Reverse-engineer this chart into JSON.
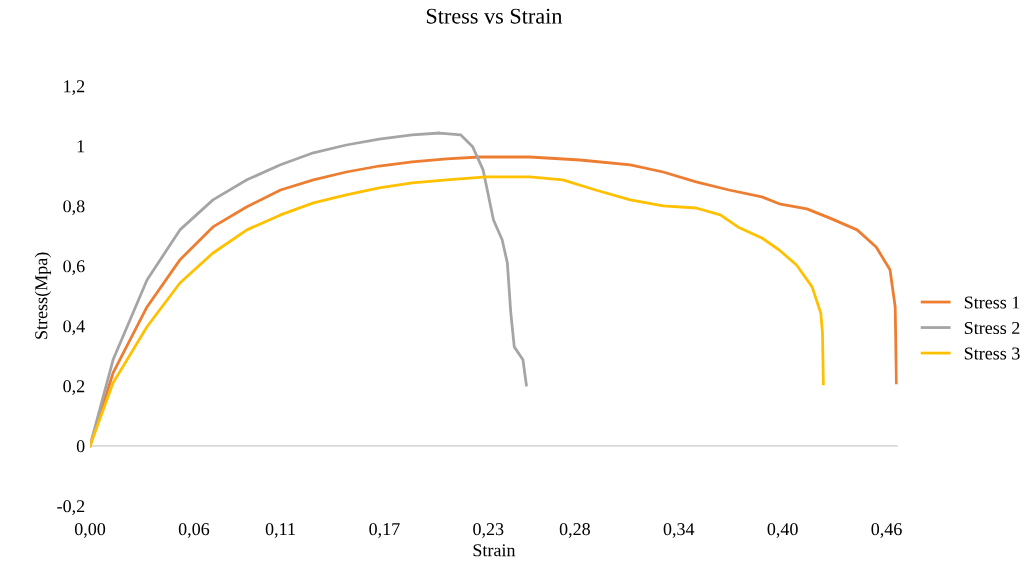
{
  "chart_data": {
    "type": "line",
    "title": "Stress vs Strain",
    "xlabel": "Strain",
    "ylabel": "Stress(Mpa)",
    "xlim": [
      0,
      0.4665
    ],
    "xticks": [
      {
        "value": 0,
        "label": "0,00"
      },
      {
        "value": 0.06,
        "label": "0,06"
      },
      {
        "value": 0.11,
        "label": "0,11"
      },
      {
        "value": 0.17,
        "label": "0,17"
      },
      {
        "value": 0.23,
        "label": "0,23"
      },
      {
        "value": 0.28,
        "label": "0,28"
      },
      {
        "value": 0.34,
        "label": "0,34"
      },
      {
        "value": 0.4,
        "label": "0,40"
      },
      {
        "value": 0.46,
        "label": "0,46"
      }
    ],
    "ylim": [
      -0.2,
      1.2
    ],
    "yticks": [
      {
        "value": -0.2,
        "label": "-0,2"
      },
      0,
      {
        "value": 0.2,
        "label": "0,2"
      },
      {
        "value": 0.4,
        "label": "0,4"
      },
      {
        "value": 0.6,
        "label": "0,6"
      },
      {
        "value": 0.8,
        "label": "0,8"
      },
      1,
      {
        "value": 1.2,
        "label": "1,2"
      }
    ],
    "grid": false,
    "ref_lines": [
      {
        "axis": "y",
        "value": 0,
        "color": "#d9d9d9"
      }
    ],
    "legend": "right",
    "marker": "none",
    "line_style": "solid",
    "series": [
      {
        "name": "Stress 1",
        "color": "#ed7d31",
        "x": [
          0,
          0.0133,
          0.0329,
          0.0519,
          0.071,
          0.0906,
          0.11,
          0.129,
          0.148,
          0.167,
          0.186,
          0.206,
          0.225,
          0.254,
          0.283,
          0.312,
          0.331,
          0.35,
          0.369,
          0.388,
          0.398,
          0.414,
          0.427,
          0.443,
          0.454,
          0.462,
          0.465,
          0.4657
        ],
        "values": [
          0,
          0.243,
          0.463,
          0.62,
          0.73,
          0.797,
          0.853,
          0.887,
          0.913,
          0.933,
          0.947,
          0.957,
          0.963,
          0.963,
          0.953,
          0.937,
          0.913,
          0.88,
          0.853,
          0.83,
          0.807,
          0.79,
          0.76,
          0.72,
          0.663,
          0.587,
          0.463,
          0.21
        ]
      },
      {
        "name": "Stress 2",
        "color": "#a5a5a5",
        "x": [
          0,
          0.0133,
          0.0329,
          0.0519,
          0.071,
          0.0906,
          0.11,
          0.129,
          0.148,
          0.167,
          0.186,
          0.202,
          0.214,
          0.221,
          0.227,
          0.233,
          0.238,
          0.241,
          0.243,
          0.245,
          0.25,
          0.252
        ],
        "values": [
          0,
          0.287,
          0.553,
          0.72,
          0.82,
          0.887,
          0.937,
          0.977,
          1.003,
          1.023,
          1.037,
          1.043,
          1.037,
          0.997,
          0.92,
          0.753,
          0.687,
          0.61,
          0.443,
          0.33,
          0.287,
          0.203
        ]
      },
      {
        "name": "Stress 3",
        "color": "#ffc000",
        "x": [
          0,
          0.0133,
          0.0329,
          0.0519,
          0.071,
          0.0906,
          0.11,
          0.129,
          0.148,
          0.167,
          0.186,
          0.206,
          0.229,
          0.254,
          0.273,
          0.292,
          0.312,
          0.331,
          0.35,
          0.364,
          0.375,
          0.388,
          0.398,
          0.408,
          0.417,
          0.422,
          0.423,
          0.4235
        ],
        "values": [
          0,
          0.21,
          0.397,
          0.543,
          0.643,
          0.72,
          0.77,
          0.81,
          0.837,
          0.86,
          0.877,
          0.887,
          0.897,
          0.897,
          0.887,
          0.853,
          0.82,
          0.8,
          0.793,
          0.77,
          0.727,
          0.693,
          0.653,
          0.603,
          0.53,
          0.443,
          0.377,
          0.207
        ]
      }
    ]
  }
}
